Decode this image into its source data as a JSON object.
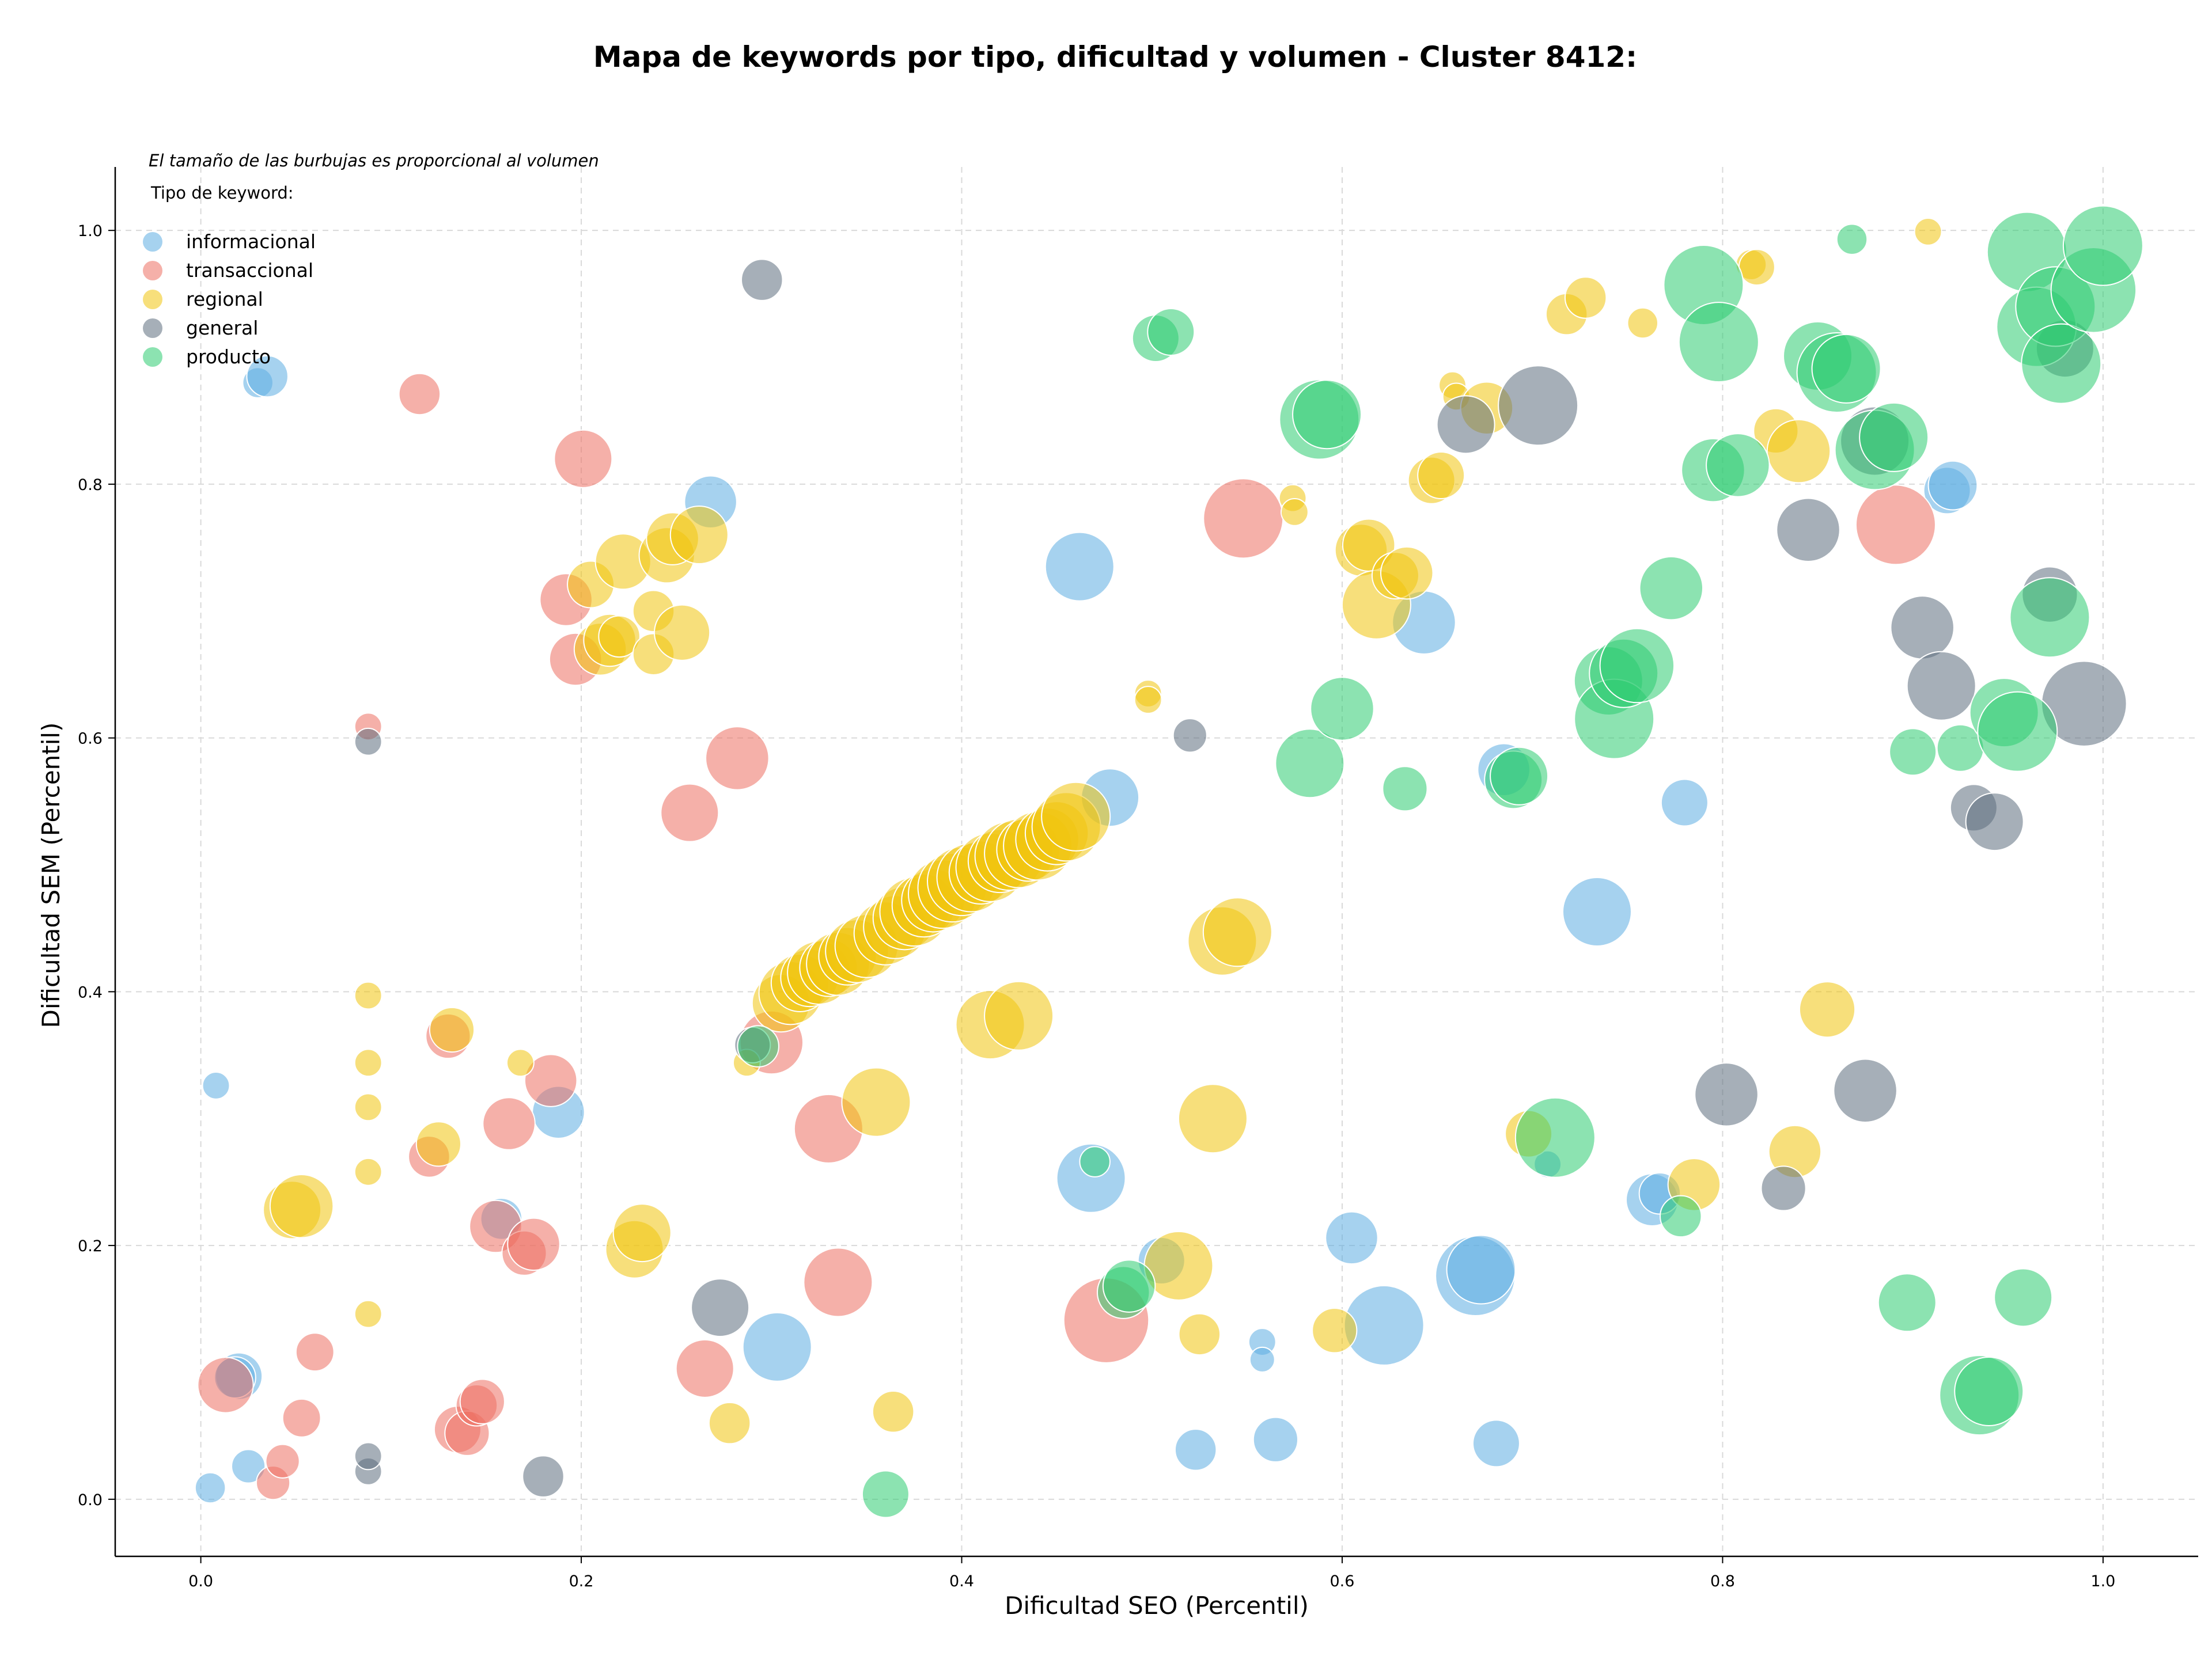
{
  "chart_data": {
    "type": "scatter",
    "title": "Mapa de keywords por tipo, dificultad y volumen - Cluster 8412:",
    "xlabel": "Dificultad SEO (Percentil)",
    "ylabel": "Dificultad SEM (Percentil)",
    "xlim": [
      -0.045,
      1.05
    ],
    "ylim": [
      -0.045,
      1.05
    ],
    "xticks": [
      "0.0",
      "0.2",
      "0.4",
      "0.6",
      "0.8",
      "1.0"
    ],
    "yticks": [
      "0.0",
      "0.2",
      "0.4",
      "0.6",
      "0.8",
      "1.0"
    ],
    "grid": true,
    "legend_position": "top-left",
    "legend_note": "El tamaño de las burbujas es proporcional al volumen",
    "legend_title": "Tipo de keyword:",
    "series": [
      {
        "name": "informacional",
        "color": "#5dade2",
        "points": [
          [
            0.03,
            0.88,
            1.5
          ],
          [
            0.035,
            0.885,
            2.5
          ],
          [
            0.008,
            0.326,
            1.2
          ],
          [
            0.02,
            0.097,
            3
          ],
          [
            0.018,
            0.096,
            2.5
          ],
          [
            0.025,
            0.026,
            1.8
          ],
          [
            0.005,
            0.009,
            1.5
          ],
          [
            0.268,
            0.786,
            3.5
          ],
          [
            0.188,
            0.305,
            3.5
          ],
          [
            0.158,
            0.221,
            2.5
          ],
          [
            0.303,
            0.12,
            5
          ],
          [
            0.462,
            0.735,
            5
          ],
          [
            0.478,
            0.553,
            4
          ],
          [
            0.468,
            0.253,
            5
          ],
          [
            0.505,
            0.188,
            3
          ],
          [
            0.523,
            0.039,
            2.5
          ],
          [
            0.558,
            0.124,
            1.2
          ],
          [
            0.558,
            0.11,
            1
          ],
          [
            0.565,
            0.047,
            2.8
          ],
          [
            0.605,
            0.206,
            3.5
          ],
          [
            0.622,
            0.137,
            6
          ],
          [
            0.643,
            0.691,
            4.5
          ],
          [
            0.67,
            0.176,
            6
          ],
          [
            0.673,
            0.181,
            5
          ],
          [
            0.685,
            0.575,
            3.5
          ],
          [
            0.681,
            0.044,
            3
          ],
          [
            0.708,
            0.264,
            1.2
          ],
          [
            0.734,
            0.463,
            5
          ],
          [
            0.763,
            0.236,
            3.5
          ],
          [
            0.767,
            0.241,
            2.5
          ],
          [
            0.78,
            0.549,
            3
          ],
          [
            0.918,
            0.795,
            3
          ],
          [
            0.921,
            0.799,
            3.2
          ]
        ]
      },
      {
        "name": "transaccional",
        "color": "#ec7063",
        "points": [
          [
            0.115,
            0.871,
            2.5
          ],
          [
            0.013,
            0.09,
            3.8
          ],
          [
            0.038,
            0.013,
            1.8
          ],
          [
            0.043,
            0.03,
            1.8
          ],
          [
            0.053,
            0.064,
            2.2
          ],
          [
            0.06,
            0.116,
            2.2
          ],
          [
            0.088,
            0.609,
            1.2
          ],
          [
            0.12,
            0.27,
            2.5
          ],
          [
            0.13,
            0.365,
            2.8
          ],
          [
            0.135,
            0.055,
            3
          ],
          [
            0.14,
            0.052,
            2.8
          ],
          [
            0.145,
            0.074,
            2.5
          ],
          [
            0.148,
            0.077,
            2.8
          ],
          [
            0.155,
            0.215,
            3.5
          ],
          [
            0.162,
            0.296,
            3.5
          ],
          [
            0.17,
            0.194,
            2.8
          ],
          [
            0.175,
            0.201,
            3.5
          ],
          [
            0.184,
            0.33,
            3.5
          ],
          [
            0.192,
            0.709,
            3.5
          ],
          [
            0.197,
            0.662,
            3.5
          ],
          [
            0.201,
            0.82,
            4
          ],
          [
            0.257,
            0.541,
            4
          ],
          [
            0.265,
            0.103,
            4
          ],
          [
            0.282,
            0.584,
            4.5
          ],
          [
            0.3,
            0.36,
            4.5
          ],
          [
            0.33,
            0.292,
            5
          ],
          [
            0.335,
            0.171,
            5
          ],
          [
            0.476,
            0.141,
            6.5
          ],
          [
            0.548,
            0.773,
            6
          ],
          [
            0.891,
            0.768,
            6
          ]
        ]
      },
      {
        "name": "regional",
        "color": "#f1c40f",
        "points": [
          [
            0.088,
            0.397,
            1.2
          ],
          [
            0.088,
            0.344,
            1.2
          ],
          [
            0.088,
            0.309,
            1.2
          ],
          [
            0.088,
            0.258,
            1.2
          ],
          [
            0.088,
            0.146,
            1.2
          ],
          [
            0.048,
            0.228,
            4
          ],
          [
            0.053,
            0.231,
            4.5
          ],
          [
            0.125,
            0.28,
            2.8
          ],
          [
            0.132,
            0.37,
            2.8
          ],
          [
            0.168,
            0.344,
            1.2
          ],
          [
            0.205,
            0.721,
            3
          ],
          [
            0.21,
            0.67,
            3.5
          ],
          [
            0.215,
            0.677,
            3.5
          ],
          [
            0.22,
            0.68,
            2.5
          ],
          [
            0.222,
            0.739,
            3.8
          ],
          [
            0.228,
            0.197,
            4
          ],
          [
            0.232,
            0.21,
            4
          ],
          [
            0.238,
            0.7,
            2.5
          ],
          [
            0.238,
            0.666,
            2.5
          ],
          [
            0.245,
            0.744,
            3.8
          ],
          [
            0.248,
            0.757,
            3.5
          ],
          [
            0.253,
            0.683,
            3.8
          ],
          [
            0.262,
            0.76,
            4
          ],
          [
            0.278,
            0.06,
            2.5
          ],
          [
            0.287,
            0.344,
            1.2
          ],
          [
            0.305,
            0.391,
            4
          ],
          [
            0.31,
            0.399,
            4.5
          ],
          [
            0.315,
            0.407,
            4
          ],
          [
            0.32,
            0.411,
            4
          ],
          [
            0.325,
            0.415,
            4.5
          ],
          [
            0.33,
            0.419,
            4
          ],
          [
            0.335,
            0.422,
            4.5
          ],
          [
            0.34,
            0.428,
            4
          ],
          [
            0.345,
            0.432,
            4.5
          ],
          [
            0.35,
            0.436,
            4.5
          ],
          [
            0.355,
            0.313,
            5
          ],
          [
            0.36,
            0.446,
            4.5
          ],
          [
            0.365,
            0.451,
            4.5
          ],
          [
            0.37,
            0.458,
            4.5
          ],
          [
            0.375,
            0.463,
            5
          ],
          [
            0.38,
            0.468,
            4.5
          ],
          [
            0.385,
            0.472,
            4.5
          ],
          [
            0.39,
            0.477,
            5
          ],
          [
            0.395,
            0.482,
            5
          ],
          [
            0.4,
            0.487,
            5
          ],
          [
            0.405,
            0.49,
            5
          ],
          [
            0.41,
            0.494,
            4.5
          ],
          [
            0.415,
            0.498,
            5
          ],
          [
            0.415,
            0.374,
            5
          ],
          [
            0.42,
            0.503,
            4.5
          ],
          [
            0.425,
            0.507,
            5
          ],
          [
            0.43,
            0.381,
            5
          ],
          [
            0.43,
            0.509,
            5
          ],
          [
            0.435,
            0.512,
            4.5
          ],
          [
            0.44,
            0.515,
            5
          ],
          [
            0.445,
            0.52,
            4.5
          ],
          [
            0.45,
            0.525,
            4.5
          ],
          [
            0.455,
            0.53,
            5
          ],
          [
            0.46,
            0.538,
            5
          ],
          [
            0.364,
            0.069,
            2.5
          ],
          [
            0.498,
            0.635,
            1.2
          ],
          [
            0.498,
            0.63,
            1.2
          ],
          [
            0.514,
            0.184,
            5
          ],
          [
            0.525,
            0.13,
            2.5
          ],
          [
            0.532,
            0.3,
            5
          ],
          [
            0.537,
            0.44,
            5
          ],
          [
            0.545,
            0.447,
            5
          ],
          [
            0.574,
            0.789,
            1.2
          ],
          [
            0.575,
            0.778,
            1.2
          ],
          [
            0.596,
            0.133,
            2.8
          ],
          [
            0.61,
            0.748,
            3.5
          ],
          [
            0.614,
            0.752,
            3.5
          ],
          [
            0.618,
            0.705,
            5
          ],
          [
            0.628,
            0.728,
            3
          ],
          [
            0.634,
            0.73,
            3.5
          ],
          [
            0.647,
            0.803,
            3
          ],
          [
            0.652,
            0.807,
            3
          ],
          [
            0.658,
            0.878,
            1.2
          ],
          [
            0.66,
            0.869,
            1.2
          ],
          [
            0.676,
            0.86,
            3.5
          ],
          [
            0.698,
            0.288,
            3
          ],
          [
            0.718,
            0.934,
            2.5
          ],
          [
            0.728,
            0.947,
            2.5
          ],
          [
            0.758,
            0.927,
            1.5
          ],
          [
            0.785,
            0.248,
            3.5
          ],
          [
            0.815,
            0.973,
            1.5
          ],
          [
            0.818,
            0.971,
            2
          ],
          [
            0.828,
            0.842,
            2.8
          ],
          [
            0.838,
            0.274,
            3.5
          ],
          [
            0.84,
            0.826,
            4.5
          ],
          [
            0.855,
            0.386,
            3.8
          ],
          [
            0.908,
            0.999,
            1.2
          ]
        ]
      },
      {
        "name": "general",
        "color": "#5d6d7e",
        "points": [
          [
            0.295,
            0.961,
            2.5
          ],
          [
            0.088,
            0.597,
            1.2
          ],
          [
            0.088,
            0.022,
            1.2
          ],
          [
            0.088,
            0.034,
            1.2
          ],
          [
            0.18,
            0.018,
            2.5
          ],
          [
            0.273,
            0.151,
            4
          ],
          [
            0.29,
            0.358,
            2
          ],
          [
            0.52,
            0.602,
            1.8
          ],
          [
            0.665,
            0.847,
            4
          ],
          [
            0.703,
            0.862,
            6
          ],
          [
            0.802,
            0.319,
            4.5
          ],
          [
            0.832,
            0.245,
            2.8
          ],
          [
            0.845,
            0.764,
            4.5
          ],
          [
            0.875,
            0.322,
            4.5
          ],
          [
            0.88,
            0.834,
            5
          ],
          [
            0.905,
            0.687,
            4.5
          ],
          [
            0.915,
            0.641,
            5
          ],
          [
            0.932,
            0.545,
            3
          ],
          [
            0.943,
            0.534,
            4
          ],
          [
            0.972,
            0.713,
            3.8
          ],
          [
            0.98,
            0.907,
            4
          ],
          [
            0.99,
            0.627,
            6.5
          ]
        ]
      },
      {
        "name": "producto",
        "color": "#2ecc71",
        "points": [
          [
            0.293,
            0.357,
            2.5
          ],
          [
            0.36,
            0.004,
            3
          ],
          [
            0.47,
            0.266,
            1.5
          ],
          [
            0.485,
            0.163,
            3.5
          ],
          [
            0.488,
            0.168,
            3.5
          ],
          [
            0.502,
            0.915,
            3
          ],
          [
            0.51,
            0.92,
            3
          ],
          [
            0.583,
            0.58,
            5
          ],
          [
            0.588,
            0.851,
            6
          ],
          [
            0.592,
            0.855,
            5
          ],
          [
            0.6,
            0.623,
            4.5
          ],
          [
            0.633,
            0.56,
            2.8
          ],
          [
            0.69,
            0.567,
            4
          ],
          [
            0.693,
            0.57,
            4
          ],
          [
            0.712,
            0.285,
            6
          ],
          [
            0.74,
            0.645,
            5
          ],
          [
            0.743,
            0.615,
            6
          ],
          [
            0.748,
            0.651,
            5
          ],
          [
            0.755,
            0.657,
            5.5
          ],
          [
            0.773,
            0.718,
            4.5
          ],
          [
            0.778,
            0.223,
            2.5
          ],
          [
            0.79,
            0.957,
            6
          ],
          [
            0.795,
            0.811,
            4.5
          ],
          [
            0.798,
            0.912,
            6
          ],
          [
            0.808,
            0.815,
            4.5
          ],
          [
            0.85,
            0.901,
            5
          ],
          [
            0.86,
            0.888,
            6
          ],
          [
            0.865,
            0.891,
            5
          ],
          [
            0.868,
            0.993,
            1.5
          ],
          [
            0.88,
            0.827,
            6
          ],
          [
            0.89,
            0.837,
            5
          ],
          [
            0.897,
            0.155,
            4
          ],
          [
            0.9,
            0.589,
            3
          ],
          [
            0.925,
            0.592,
            3
          ],
          [
            0.935,
            0.082,
            6
          ],
          [
            0.94,
            0.085,
            5
          ],
          [
            0.948,
            0.62,
            5
          ],
          [
            0.955,
            0.605,
            6
          ],
          [
            0.958,
            0.159,
            4
          ],
          [
            0.96,
            0.983,
            6
          ],
          [
            0.965,
            0.924,
            6
          ],
          [
            0.972,
            0.695,
            6
          ],
          [
            0.975,
            0.94,
            6
          ],
          [
            0.978,
            0.895,
            6
          ],
          [
            0.995,
            0.953,
            6.5
          ],
          [
            1.0,
            0.988,
            6
          ]
        ]
      }
    ]
  }
}
